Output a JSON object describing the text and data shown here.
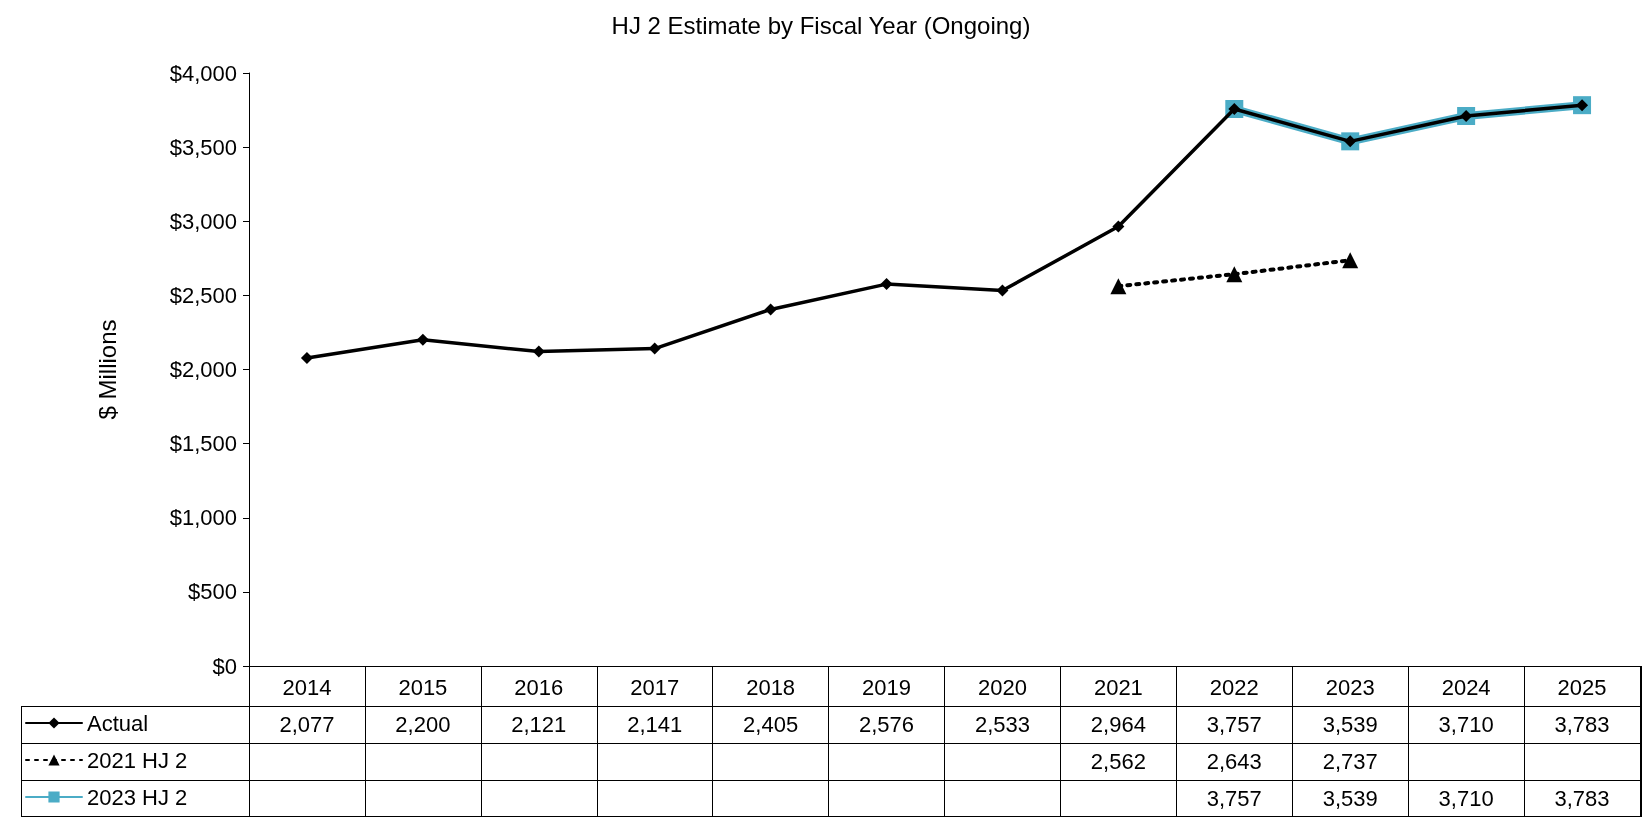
{
  "chart_data": {
    "type": "line",
    "title": "HJ 2 Estimate by Fiscal Year (Ongoing)",
    "ylabel": "$ Millions",
    "categories": [
      "2014",
      "2015",
      "2016",
      "2017",
      "2018",
      "2019",
      "2020",
      "2021",
      "2022",
      "2023",
      "2024",
      "2025"
    ],
    "series": [
      {
        "name": "Actual",
        "color": "#000000",
        "marker": "diamond",
        "line_style": "solid",
        "values": [
          2077,
          2200,
          2121,
          2141,
          2405,
          2576,
          2533,
          2964,
          3757,
          3539,
          3710,
          3783
        ],
        "value_labels": [
          "2,077",
          "2,200",
          "2,121",
          "2,141",
          "2,405",
          "2,576",
          "2,533",
          "2,964",
          "3,757",
          "3,539",
          "3,710",
          "3,783"
        ]
      },
      {
        "name": "2021 HJ 2",
        "color": "#000000",
        "marker": "triangle",
        "line_style": "dotted",
        "values": [
          null,
          null,
          null,
          null,
          null,
          null,
          null,
          2562,
          2643,
          2737,
          null,
          null
        ],
        "value_labels": [
          null,
          null,
          null,
          null,
          null,
          null,
          null,
          "2,562",
          "2,643",
          "2,737",
          null,
          null
        ]
      },
      {
        "name": "2023 HJ 2",
        "color": "#4bacc6",
        "marker": "square",
        "line_style": "solid",
        "values": [
          null,
          null,
          null,
          null,
          null,
          null,
          null,
          null,
          3757,
          3539,
          3710,
          3783
        ],
        "value_labels": [
          null,
          null,
          null,
          null,
          null,
          null,
          null,
          null,
          "3,757",
          "3,539",
          "3,710",
          "3,783"
        ]
      }
    ],
    "ylim": [
      0,
      4000
    ],
    "yticks": [
      {
        "value": 0,
        "label": "$0"
      },
      {
        "value": 500,
        "label": "$500"
      },
      {
        "value": 1000,
        "label": "$1,000"
      },
      {
        "value": 1500,
        "label": "$1,500"
      },
      {
        "value": 2000,
        "label": "$2,000"
      },
      {
        "value": 2500,
        "label": "$2,500"
      },
      {
        "value": 3000,
        "label": "$3,000"
      },
      {
        "value": 3500,
        "label": "$3,500"
      },
      {
        "value": 4000,
        "label": "$4,000"
      }
    ],
    "grid": false,
    "legend": "bottom left"
  }
}
